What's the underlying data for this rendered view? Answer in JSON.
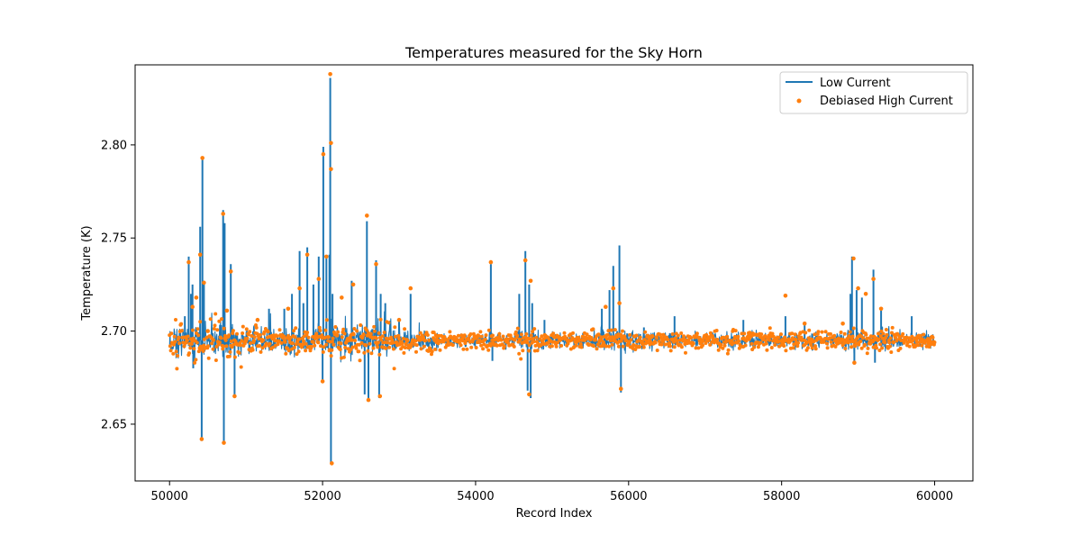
{
  "chart_data": {
    "type": "line",
    "title": "Temperatures measured for the Sky Horn",
    "xlabel": "Record Index",
    "ylabel": "Temperature (K)",
    "xlim": [
      49550,
      60500
    ],
    "ylim": [
      2.6195,
      2.843
    ],
    "xticks": [
      50000,
      52000,
      54000,
      56000,
      58000,
      60000
    ],
    "xtick_labels": [
      "50000",
      "52000",
      "54000",
      "56000",
      "58000",
      "60000"
    ],
    "yticks": [
      2.65,
      2.7,
      2.75,
      2.8
    ],
    "ytick_labels": [
      "2.65",
      "2.70",
      "2.75",
      "2.80"
    ],
    "grid": false,
    "legend_position": "top-right",
    "series": [
      {
        "name": "Low Current",
        "kind": "line",
        "color": "#1f77b4",
        "baseline": 2.695,
        "x_range": [
          50000,
          60000
        ],
        "x": [
          50200,
          50250,
          50280,
          50300,
          50310,
          50400,
          50420,
          50430,
          50450,
          50700,
          50710,
          50720,
          50800,
          50850,
          51300,
          51500,
          51600,
          51700,
          51750,
          51800,
          51880,
          51950,
          52000,
          52010,
          52050,
          52090,
          52100,
          52110,
          52130,
          52380,
          52550,
          52580,
          52600,
          52680,
          52700,
          52740,
          52760,
          52820,
          53000,
          53150,
          54200,
          54220,
          54570,
          54650,
          54680,
          54700,
          54720,
          54740,
          54900,
          55650,
          55750,
          55800,
          55850,
          55880,
          55900,
          56200,
          56600,
          57500,
          58050,
          58300,
          58900,
          58920,
          58950,
          58980,
          59050,
          59200,
          59220,
          59300,
          59700
        ],
        "y": [
          2.708,
          2.74,
          2.72,
          2.725,
          2.68,
          2.756,
          2.641,
          2.793,
          2.727,
          2.765,
          2.64,
          2.758,
          2.736,
          2.664,
          2.712,
          2.712,
          2.72,
          2.743,
          2.715,
          2.745,
          2.725,
          2.74,
          2.672,
          2.799,
          2.74,
          2.741,
          2.836,
          2.629,
          2.72,
          2.727,
          2.666,
          2.759,
          2.663,
          2.7,
          2.738,
          2.664,
          2.72,
          2.715,
          2.707,
          2.72,
          2.736,
          2.684,
          2.72,
          2.743,
          2.668,
          2.725,
          2.664,
          2.715,
          2.706,
          2.712,
          2.722,
          2.735,
          2.7,
          2.746,
          2.667,
          2.702,
          2.708,
          2.706,
          2.708,
          2.705,
          2.72,
          2.74,
          2.682,
          2.722,
          2.718,
          2.733,
          2.683,
          2.712,
          2.708
        ]
      },
      {
        "name": "Debiased High Current",
        "kind": "scatter",
        "color": "#ff7f0e",
        "baseline": 2.695,
        "x_range": [
          50000,
          60000
        ],
        "x": [
          50250,
          50300,
          50350,
          50400,
          50420,
          50430,
          50450,
          50500,
          50700,
          50710,
          50750,
          50800,
          50850,
          51150,
          51550,
          51700,
          51800,
          51950,
          52000,
          52010,
          52050,
          52100,
          52110,
          52110,
          52120,
          52250,
          52400,
          52580,
          52600,
          52700,
          52750,
          53000,
          53150,
          54200,
          54650,
          54700,
          54720,
          55700,
          55800,
          55880,
          55900,
          58050,
          58300,
          58800,
          58940,
          58950,
          59000,
          59100,
          59200,
          59300
        ],
        "y": [
          2.737,
          2.713,
          2.718,
          2.741,
          2.642,
          2.793,
          2.726,
          2.7,
          2.763,
          2.64,
          2.711,
          2.732,
          2.665,
          2.706,
          2.712,
          2.723,
          2.741,
          2.728,
          2.673,
          2.795,
          2.74,
          2.838,
          2.801,
          2.787,
          2.629,
          2.718,
          2.725,
          2.762,
          2.663,
          2.736,
          2.665,
          2.706,
          2.723,
          2.737,
          2.738,
          2.666,
          2.727,
          2.713,
          2.723,
          2.715,
          2.669,
          2.719,
          2.704,
          2.704,
          2.739,
          2.683,
          2.723,
          2.72,
          2.728,
          2.712
        ]
      }
    ]
  }
}
